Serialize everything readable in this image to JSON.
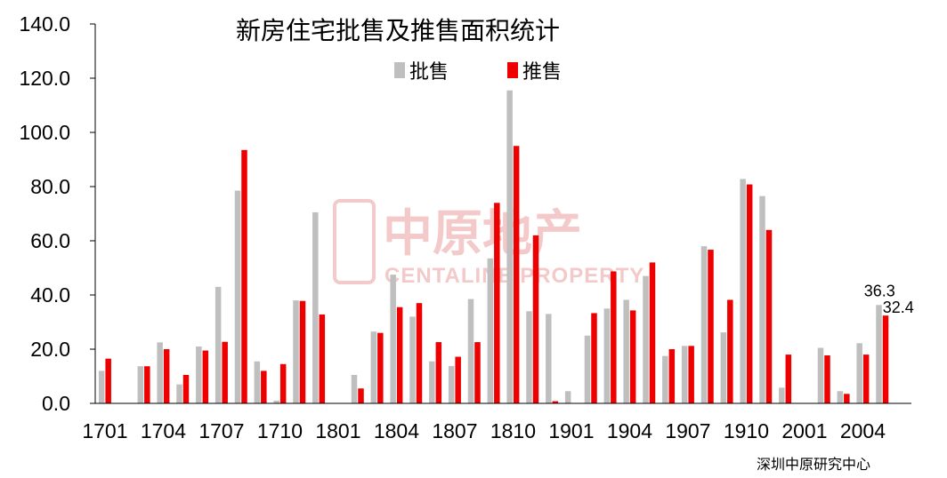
{
  "chart_data": {
    "type": "bar",
    "title": "新房住宅批售及推售面积统计",
    "source": "深圳中原研究中心",
    "ylim": [
      0,
      140
    ],
    "yticks": [
      "0.0",
      "20.0",
      "40.0",
      "60.0",
      "80.0",
      "100.0",
      "120.0",
      "140.0"
    ],
    "xtick_labels": [
      "1701",
      "1704",
      "1707",
      "1710",
      "1801",
      "1804",
      "1807",
      "1810",
      "1901",
      "1904",
      "1907",
      "1910",
      "2001",
      "2004"
    ],
    "categories": [
      "1701",
      "1702",
      "1703",
      "1704",
      "1705",
      "1706",
      "1707",
      "1708",
      "1709",
      "1710",
      "1711",
      "1712",
      "1801",
      "1802",
      "1803",
      "1804",
      "1805",
      "1806",
      "1807",
      "1808",
      "1809",
      "1810",
      "1811",
      "1812",
      "1901",
      "1902",
      "1903",
      "1904",
      "1905",
      "1906",
      "1907",
      "1908",
      "1909",
      "1910",
      "1911",
      "1912",
      "2001",
      "2002",
      "2003",
      "2004",
      "2005",
      "2006"
    ],
    "series": [
      {
        "name": "批售",
        "color": "#bfbfbf",
        "values": [
          12.0,
          0,
          13.7,
          22.5,
          7.0,
          21.0,
          43.0,
          78.5,
          15.5,
          1.0,
          38.0,
          70.5,
          0,
          10.5,
          26.5,
          47.5,
          32.0,
          15.5,
          13.8,
          38.5,
          53.5,
          115.5,
          34.0,
          33.0,
          4.5,
          25.0,
          35.0,
          38.2,
          47.0,
          17.5,
          21.2,
          58.0,
          26.2,
          82.8,
          76.5,
          5.8,
          0,
          20.5,
          4.5,
          22.2,
          36.3,
          0
        ]
      },
      {
        "name": "推售",
        "color": "#ee0000",
        "values": [
          16.5,
          0,
          13.7,
          20.0,
          10.5,
          19.5,
          22.7,
          93.5,
          12.0,
          14.5,
          37.8,
          32.8,
          0,
          5.5,
          26.0,
          35.5,
          37.0,
          22.6,
          17.2,
          22.6,
          74.0,
          95.0,
          62.0,
          0.8,
          0,
          33.3,
          48.7,
          34.3,
          52.0,
          20.0,
          21.2,
          56.7,
          38.2,
          80.8,
          64.0,
          18.0,
          0,
          17.7,
          3.5,
          18.0,
          32.4,
          0
        ]
      }
    ],
    "data_labels": [
      {
        "series": "批售",
        "category": "2005",
        "text": "36.3"
      },
      {
        "series": "推售",
        "category": "2005",
        "text": "32.4"
      }
    ],
    "legend_position": "top",
    "grid": false
  },
  "watermark": {
    "cn": "中原地产",
    "en": "CENTALINE PROPERTY"
  }
}
